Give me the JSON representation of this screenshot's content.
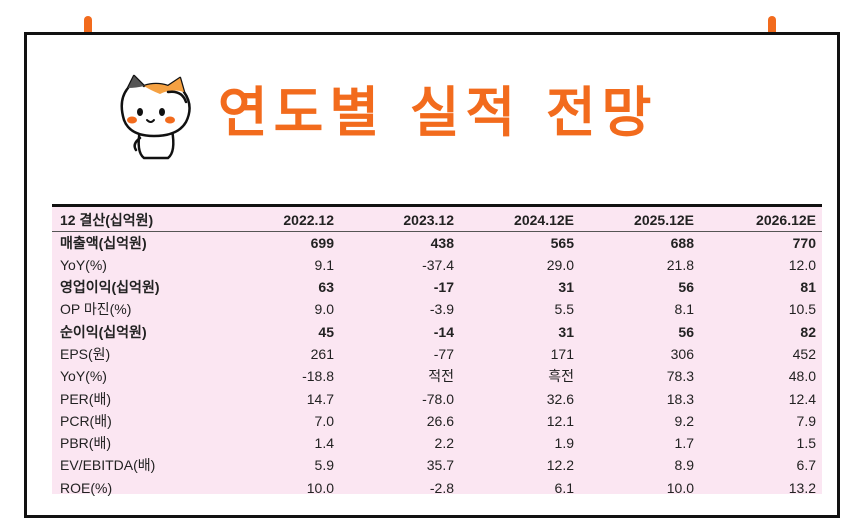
{
  "title": "연도별 실적 전망",
  "table": {
    "headers": [
      "12 결산(십억원)",
      "2022.12",
      "2023.12",
      "2024.12E",
      "2025.12E",
      "2026.12E"
    ],
    "rows": [
      {
        "label": "매출액(십억원)",
        "bold": true,
        "values": [
          "699",
          "438",
          "565",
          "688",
          "770"
        ]
      },
      {
        "label": "YoY(%)",
        "bold": false,
        "values": [
          "9.1",
          "-37.4",
          "29.0",
          "21.8",
          "12.0"
        ]
      },
      {
        "label": "영업이익(십억원)",
        "bold": true,
        "values": [
          "63",
          "-17",
          "31",
          "56",
          "81"
        ]
      },
      {
        "label": "OP 마진(%)",
        "bold": false,
        "values": [
          "9.0",
          "-3.9",
          "5.5",
          "8.1",
          "10.5"
        ]
      },
      {
        "label": "순이익(십억원)",
        "bold": true,
        "values": [
          "45",
          "-14",
          "31",
          "56",
          "82"
        ]
      },
      {
        "label": "EPS(원)",
        "bold": false,
        "values": [
          "261",
          "-77",
          "171",
          "306",
          "452"
        ]
      },
      {
        "label": "YoY(%)",
        "bold": false,
        "values": [
          "-18.8",
          "적전",
          "흑전",
          "78.3",
          "48.0"
        ]
      },
      {
        "label": "PER(배)",
        "bold": false,
        "values": [
          "14.7",
          "-78.0",
          "32.6",
          "18.3",
          "12.4"
        ]
      },
      {
        "label": "PCR(배)",
        "bold": false,
        "values": [
          "7.0",
          "26.6",
          "12.1",
          "9.2",
          "7.9"
        ]
      },
      {
        "label": "PBR(배)",
        "bold": false,
        "values": [
          "1.4",
          "2.2",
          "1.9",
          "1.7",
          "1.5"
        ]
      },
      {
        "label": "EV/EBITDA(배)",
        "bold": false,
        "values": [
          "5.9",
          "35.7",
          "12.2",
          "8.9",
          "6.7"
        ]
      },
      {
        "label": "ROE(%)",
        "bold": false,
        "values": [
          "10.0",
          "-2.8",
          "6.1",
          "10.0",
          "13.2"
        ]
      }
    ]
  },
  "colors": {
    "accent": "#f26b1d",
    "table_bg": "#fbe6f2",
    "border": "#111111"
  },
  "icons": {
    "mascot": "calico-cat-icon",
    "pins": "orange-pin-icon"
  }
}
